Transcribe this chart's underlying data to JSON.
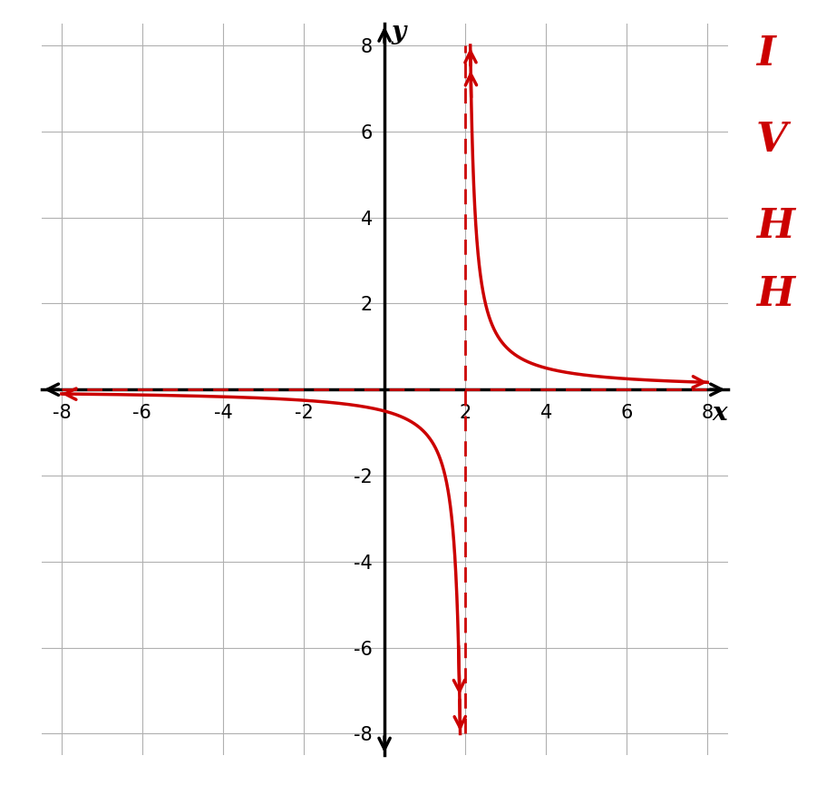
{
  "xlabel": "x",
  "ylabel": "y",
  "xlim": [
    -8.5,
    8.5
  ],
  "ylim": [
    -8.5,
    8.5
  ],
  "xticks": [
    -8,
    -6,
    -4,
    -2,
    2,
    4,
    6,
    8
  ],
  "yticks": [
    -8,
    -6,
    -4,
    -2,
    2,
    4,
    6,
    8
  ],
  "vertical_asymptote": 2,
  "horizontal_asymptote": 0,
  "function_color": "#cc0000",
  "asymptote_color": "#cc0000",
  "axis_color": "#000000",
  "grid_color": "#b0b0b0",
  "background_color": "#ffffff",
  "annotation_color": "#cc0000",
  "annotation_texts": [
    "I",
    "V",
    "H",
    "H"
  ],
  "annotation_fontsize": 36
}
